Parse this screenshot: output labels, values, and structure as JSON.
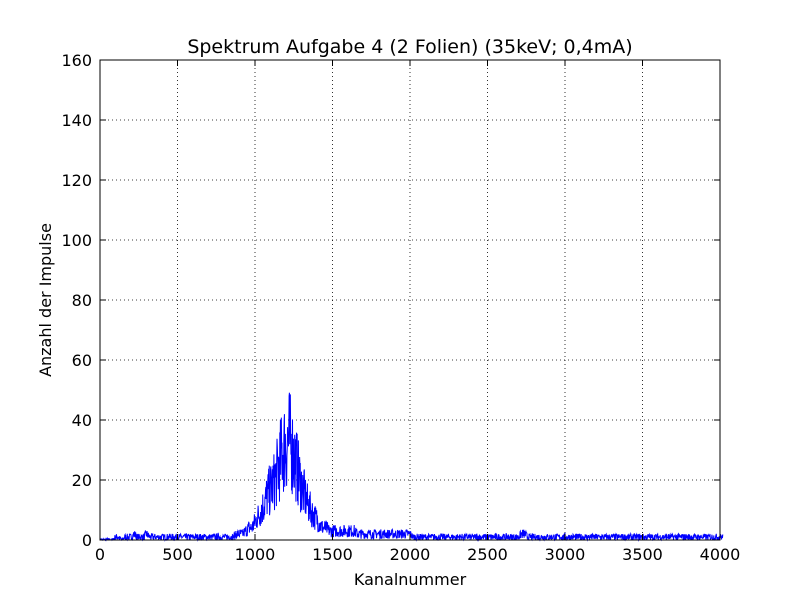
{
  "chart_data": {
    "type": "line",
    "title": "Spektrum Aufgabe 4 (2 Folien) (35keV; 0,4mA)",
    "xlabel": "Kanalnummer",
    "ylabel": "Anzahl der Impulse",
    "xlim": [
      0,
      4000
    ],
    "ylim": [
      0,
      160
    ],
    "xticks": [
      "0",
      "500",
      "1000",
      "1500",
      "2000",
      "2500",
      "3000",
      "3500",
      "4000"
    ],
    "yticks": [
      "0",
      "20",
      "40",
      "60",
      "80",
      "100",
      "120",
      "140",
      "160"
    ],
    "grid": true,
    "legend": "none",
    "series": [
      {
        "color": "#0000ff",
        "channel_step": 20,
        "x_start": 0,
        "values": [
          0,
          0,
          0,
          0,
          0,
          1,
          1,
          0,
          1,
          1,
          1,
          2,
          1,
          1,
          1,
          2,
          1,
          1,
          1,
          1,
          1,
          1,
          1,
          1,
          1,
          1,
          1,
          1,
          1,
          1,
          1,
          1,
          1,
          1,
          1,
          1,
          1,
          1,
          1,
          1,
          1,
          1,
          1,
          1,
          2,
          2,
          2,
          3,
          4,
          4,
          6,
          8,
          10,
          12,
          15,
          17,
          19,
          22,
          26,
          30,
          32,
          34,
          30,
          27,
          22,
          18,
          15,
          12,
          10,
          8,
          7,
          5,
          4,
          4,
          3,
          3,
          3,
          3,
          3,
          3,
          3,
          3,
          3,
          2,
          2,
          2,
          2,
          2,
          2,
          2,
          2,
          2,
          2,
          2,
          2,
          2,
          2,
          2,
          2,
          2,
          2,
          1,
          1,
          1,
          1,
          1,
          1,
          1,
          1,
          1,
          1,
          1,
          1,
          1,
          1,
          1,
          1,
          1,
          1,
          1,
          1,
          1,
          1,
          1,
          1,
          1,
          1,
          1,
          1,
          1,
          1,
          1,
          1,
          1,
          1,
          1,
          2,
          2,
          1,
          1,
          1,
          1,
          1,
          1,
          1,
          1,
          1,
          1,
          1,
          1,
          1,
          1,
          1,
          1,
          1,
          1,
          1,
          1,
          1,
          1,
          1,
          1,
          1,
          1,
          1,
          1,
          1,
          1,
          1,
          1,
          1,
          1,
          1,
          1,
          1,
          1,
          1,
          1,
          1,
          1,
          1,
          1,
          1,
          1,
          1,
          1,
          1,
          1,
          1,
          1,
          1,
          1,
          1,
          1,
          1,
          1,
          1,
          1,
          1,
          1,
          1
        ]
      }
    ]
  }
}
